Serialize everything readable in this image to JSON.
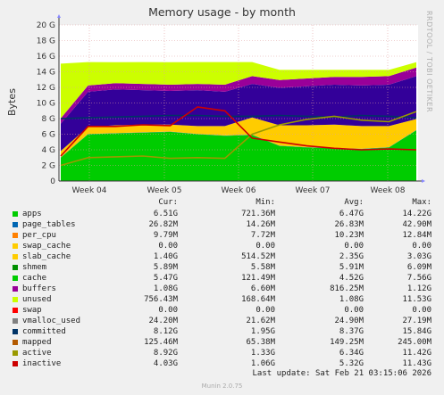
{
  "chart_data": {
    "type": "area",
    "title": "Memory usage - by month",
    "ylabel": "Bytes",
    "side_label": "RRDTOOL / TOBI OETIKER",
    "y_ticks": [
      "0",
      "2 G",
      "4 G",
      "6 G",
      "8 G",
      "10 G",
      "12 G",
      "14 G",
      "16 G",
      "18 G",
      "20 G"
    ],
    "ylim": [
      0,
      20
    ],
    "x_ticks": [
      "Week 04",
      "Week 05",
      "Week 06",
      "Week 07",
      "Week 08"
    ],
    "grid": true,
    "stacked_series": [
      {
        "name": "apps",
        "color": "#00cc00",
        "values": [
          3.0,
          6.0,
          6.1,
          6.2,
          6.3,
          6.0,
          5.8,
          5.9,
          4.5,
          4.3,
          4.2,
          4.1,
          4.3,
          6.5
        ]
      },
      {
        "name": "page_tables",
        "color": "#0066b3",
        "values": [
          0.03,
          0.03,
          0.03,
          0.03,
          0.03,
          0.03,
          0.03,
          0.03,
          0.03,
          0.03,
          0.03,
          0.03,
          0.03,
          0.03
        ]
      },
      {
        "name": "per_cpu",
        "color": "#ff8000",
        "values": [
          0.01,
          0.01,
          0.01,
          0.01,
          0.01,
          0.01,
          0.01,
          0.01,
          0.01,
          0.01,
          0.01,
          0.01,
          0.01,
          0.01
        ]
      },
      {
        "name": "slab_cache",
        "color": "#ffcc00",
        "values": [
          0.8,
          0.9,
          1.0,
          1.0,
          0.9,
          1.0,
          1.2,
          2.2,
          2.6,
          2.8,
          3.0,
          2.9,
          2.7,
          1.4
        ]
      },
      {
        "name": "cache",
        "color": "#330099",
        "values": [
          3.5,
          4.5,
          4.6,
          4.4,
          4.3,
          4.6,
          4.4,
          4.3,
          4.8,
          5.0,
          5.1,
          5.2,
          5.3,
          5.5
        ]
      },
      {
        "name": "buffers",
        "color": "#990099",
        "values": [
          0.7,
          0.8,
          0.8,
          0.8,
          0.8,
          0.8,
          0.9,
          1.0,
          1.0,
          1.0,
          1.0,
          1.1,
          1.1,
          1.1
        ]
      },
      {
        "name": "unused",
        "color": "#ccff00",
        "values": [
          7.0,
          3.0,
          2.7,
          2.8,
          2.9,
          2.8,
          2.9,
          1.8,
          1.3,
          1.1,
          0.9,
          0.9,
          0.8,
          0.7
        ]
      }
    ],
    "line_series": [
      {
        "name": "committed",
        "color": "#003366",
        "values": [
          8.0,
          8.1,
          8.2,
          8.3,
          8.4,
          8.4,
          8.3,
          8.3,
          8.4,
          8.3,
          8.2,
          8.4,
          8.3,
          8.1
        ]
      },
      {
        "name": "active",
        "color": "#999900",
        "values": [
          2.0,
          3.0,
          3.1,
          3.2,
          2.9,
          3.0,
          2.9,
          6.0,
          7.2,
          7.9,
          8.3,
          7.8,
          7.6,
          8.9
        ]
      },
      {
        "name": "inactive",
        "color": "#cc0000",
        "values": [
          3.2,
          7.0,
          7.0,
          7.2,
          7.1,
          9.5,
          9.0,
          5.5,
          5.0,
          4.5,
          4.2,
          4.0,
          4.1,
          4.0
        ]
      }
    ]
  },
  "legend_headers": {
    "cur": "Cur:",
    "min": "Min:",
    "avg": "Avg:",
    "max": "Max:"
  },
  "legend": [
    {
      "name": "apps",
      "color": "#00cc00",
      "cur": "6.51G",
      "min": "721.36M",
      "avg": "6.47G",
      "max": "14.22G"
    },
    {
      "name": "page_tables",
      "color": "#0066b3",
      "cur": "26.82M",
      "min": "14.26M",
      "avg": "26.83M",
      "max": "42.90M"
    },
    {
      "name": "per_cpu",
      "color": "#ff8000",
      "cur": "9.79M",
      "min": "7.72M",
      "avg": "10.23M",
      "max": "12.84M"
    },
    {
      "name": "swap_cache",
      "color": "#ffcc00",
      "cur": "0.00",
      "min": "0.00",
      "avg": "0.00",
      "max": "0.00"
    },
    {
      "name": "slab_cache",
      "color": "#ffcc00",
      "cur": "1.40G",
      "min": "514.52M",
      "avg": "2.35G",
      "max": "3.03G"
    },
    {
      "name": "shmem",
      "color": "#008f00",
      "cur": "5.89M",
      "min": "5.58M",
      "avg": "5.91M",
      "max": "6.09M"
    },
    {
      "name": "cache",
      "color": "#00cc00",
      "cur": "5.47G",
      "min": "121.49M",
      "avg": "4.52G",
      "max": "7.56G"
    },
    {
      "name": "buffers",
      "color": "#990099",
      "cur": "1.08G",
      "min": "6.60M",
      "avg": "816.25M",
      "max": "1.12G"
    },
    {
      "name": "unused",
      "color": "#ccff00",
      "cur": "756.43M",
      "min": "168.64M",
      "avg": "1.08G",
      "max": "11.53G"
    },
    {
      "name": "swap",
      "color": "#ff0000",
      "cur": "0.00",
      "min": "0.00",
      "avg": "0.00",
      "max": "0.00"
    },
    {
      "name": "vmalloc_used",
      "color": "#808080",
      "cur": "24.20M",
      "min": "21.62M",
      "avg": "24.90M",
      "max": "27.19M"
    },
    {
      "name": "committed",
      "color": "#003366",
      "cur": "8.12G",
      "min": "1.95G",
      "avg": "8.37G",
      "max": "15.84G"
    },
    {
      "name": "mapped",
      "color": "#b35a00",
      "cur": "125.46M",
      "min": "65.38M",
      "avg": "149.25M",
      "max": "245.00M"
    },
    {
      "name": "active",
      "color": "#999900",
      "cur": "8.92G",
      "min": "1.33G",
      "avg": "6.34G",
      "max": "11.42G"
    },
    {
      "name": "inactive",
      "color": "#cc0000",
      "cur": "4.03G",
      "min": "1.06G",
      "avg": "5.32G",
      "max": "11.43G"
    }
  ],
  "footer": "Last update: Sat Feb 21 03:15:06 2026",
  "generator": "Munin 2.0.75"
}
